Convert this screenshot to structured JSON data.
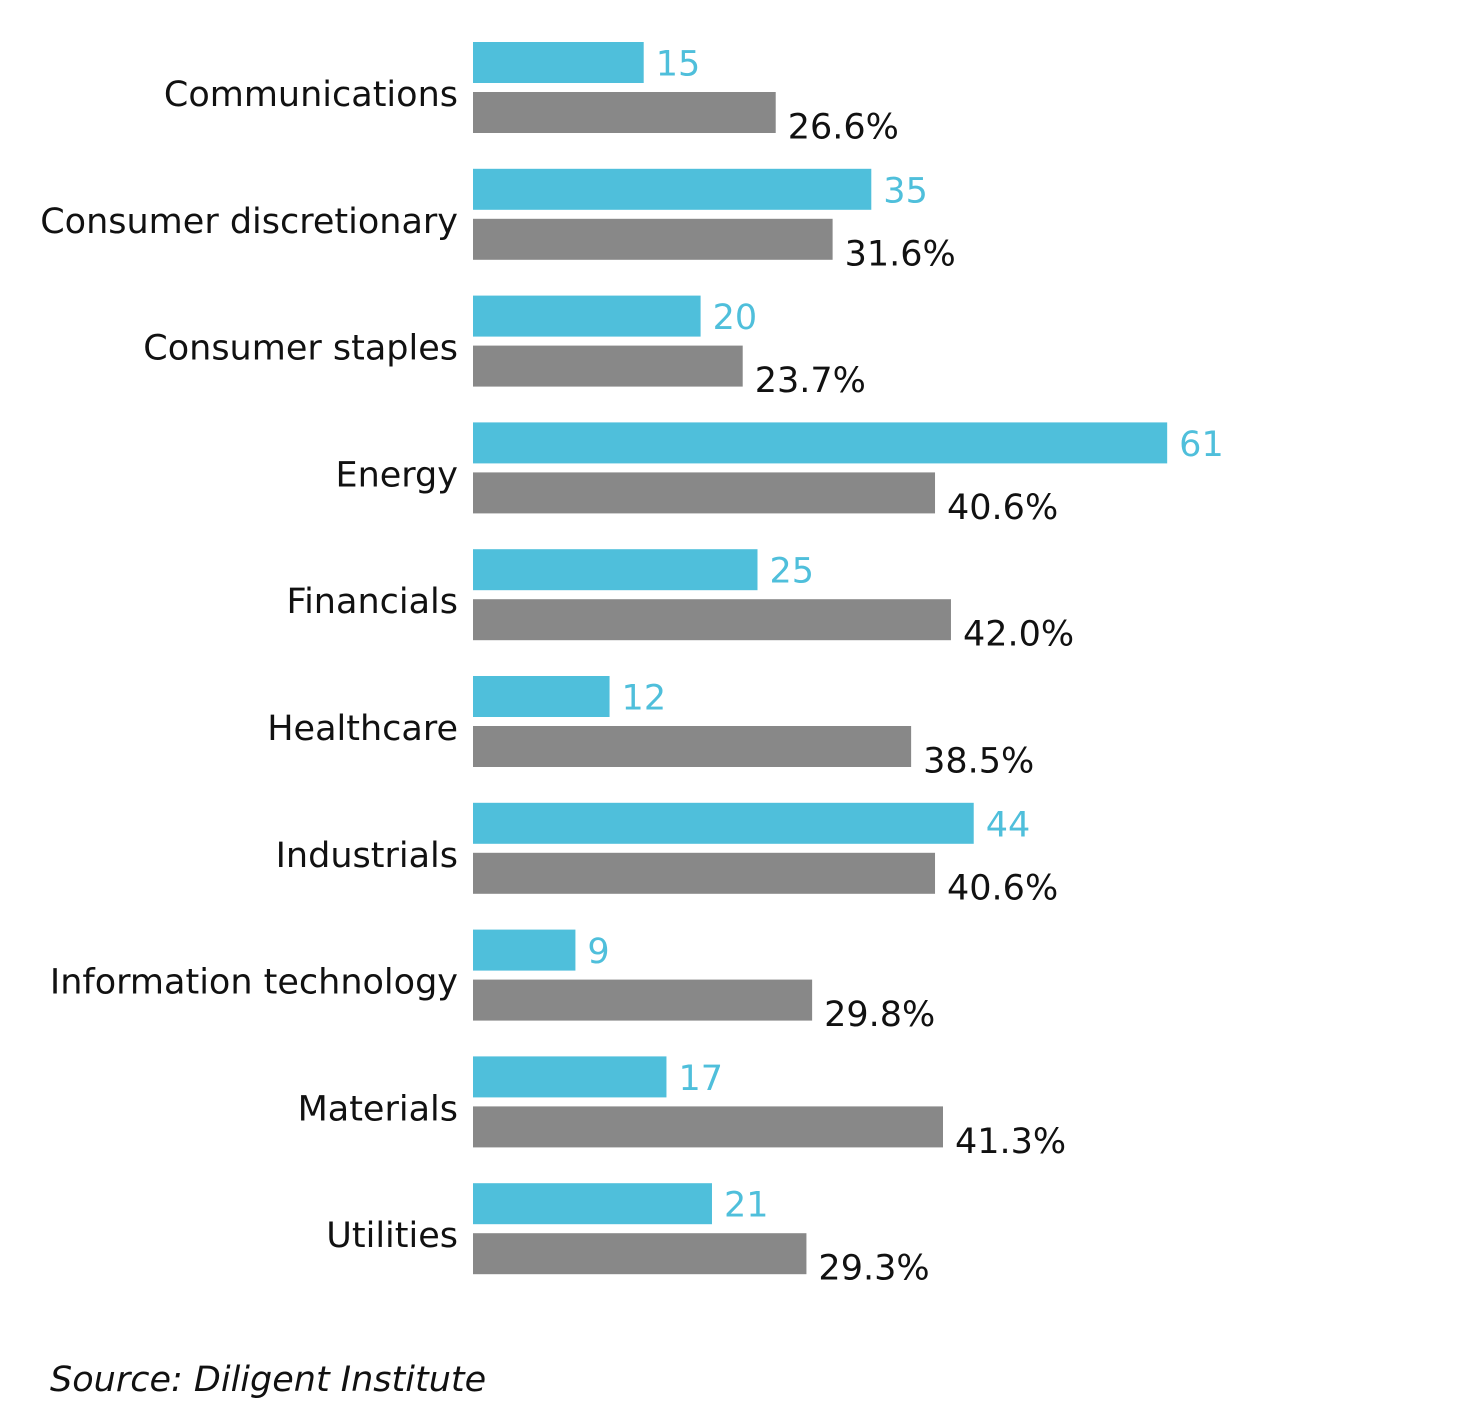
{
  "chart_data": {
    "type": "bar",
    "orientation": "horizontal",
    "categories": [
      "Communications",
      "Consumer discretionary",
      "Consumer staples",
      "Energy",
      "Financials",
      "Healthcare",
      "Industrials",
      "Information technology",
      "Materials",
      "Utilities"
    ],
    "series": [
      {
        "values": [
          15,
          35,
          20,
          61,
          25,
          12,
          44,
          9,
          17,
          21
        ],
        "labels": [
          "15",
          "35",
          "20",
          "61",
          "25",
          "12",
          "44",
          "9",
          "17",
          "21"
        ],
        "color": "#4fbfdb",
        "label_color": "#4fbfdb"
      },
      {
        "values": [
          26.6,
          31.6,
          23.7,
          40.6,
          42.0,
          38.5,
          40.6,
          29.8,
          41.3,
          29.3
        ],
        "labels": [
          "26.6%",
          "31.6%",
          "23.7%",
          "40.6%",
          "42.0%",
          "38.5%",
          "40.6%",
          "29.8%",
          "41.3%",
          "29.3%"
        ],
        "color": "#888888",
        "label_color": "#111111"
      }
    ],
    "legend": "none",
    "grid": false,
    "axes_visible": false
  },
  "source": "Source: Diligent Institute"
}
